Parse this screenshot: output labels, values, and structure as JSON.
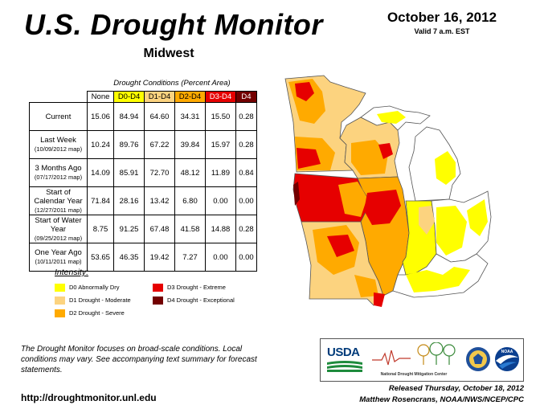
{
  "header": {
    "title": "U.S. Drought Monitor",
    "region": "Midwest",
    "date": "October 16, 2012",
    "valid": "Valid 7 a.m. EST"
  },
  "table": {
    "caption": "Drought Conditions (Percent Area)",
    "columns": [
      {
        "label": "None",
        "color": "#ffffff",
        "text": "#000000"
      },
      {
        "label": "D0-D4",
        "color": "#ffff00",
        "text": "#000000"
      },
      {
        "label": "D1-D4",
        "color": "#fcd37f",
        "text": "#000000"
      },
      {
        "label": "D2-D4",
        "color": "#ffaa00",
        "text": "#000000"
      },
      {
        "label": "D3-D4",
        "color": "#e60000",
        "text": "#ffffff"
      },
      {
        "label": "D4",
        "color": "#730000",
        "text": "#ffffff"
      }
    ],
    "rows": [
      {
        "label": "Current",
        "sub": "",
        "values": [
          "15.06",
          "84.94",
          "64.60",
          "34.31",
          "15.50",
          "0.28"
        ]
      },
      {
        "label": "Last Week",
        "sub": "(10/09/2012 map)",
        "values": [
          "10.24",
          "89.76",
          "67.22",
          "39.84",
          "15.97",
          "0.28"
        ]
      },
      {
        "label": "3 Months Ago",
        "sub": "(07/17/2012 map)",
        "values": [
          "14.09",
          "85.91",
          "72.70",
          "48.12",
          "11.89",
          "0.84"
        ]
      },
      {
        "label": "Start of Calendar Year",
        "sub": "(12/27/2011 map)",
        "values": [
          "71.84",
          "28.16",
          "13.42",
          "6.80",
          "0.00",
          "0.00"
        ]
      },
      {
        "label": "Start of Water Year",
        "sub": "(09/25/2012 map)",
        "values": [
          "8.75",
          "91.25",
          "67.48",
          "41.58",
          "14.88",
          "0.28"
        ]
      },
      {
        "label": "One Year Ago",
        "sub": "(10/11/2011 map)",
        "values": [
          "53.65",
          "46.35",
          "19.42",
          "7.27",
          "0.00",
          "0.00"
        ]
      }
    ]
  },
  "legend": {
    "title": "Intensity:",
    "items": [
      {
        "label": "D0 Abnormally Dry",
        "color": "#ffff00"
      },
      {
        "label": "D1 Drought - Moderate",
        "color": "#fcd37f"
      },
      {
        "label": "D2 Drought - Severe",
        "color": "#ffaa00"
      },
      {
        "label": "D3 Drought - Extreme",
        "color": "#e60000"
      },
      {
        "label": "D4 Drought - Exceptional",
        "color": "#730000"
      }
    ]
  },
  "note": "The Drought Monitor focuses on broad-scale conditions. Local conditions may vary. See accompanying text summary for forecast statements.",
  "url": "http://droughtmonitor.unl.edu",
  "released": {
    "line1": "Released Thursday, October 18, 2012",
    "line2": "Matthew Rosencrans, NOAA/NWS/NCEP/CPC"
  },
  "logos": {
    "usda": "USDA",
    "ndmc": "National Drought Mitigation Center",
    "noaa": "NOAA"
  }
}
